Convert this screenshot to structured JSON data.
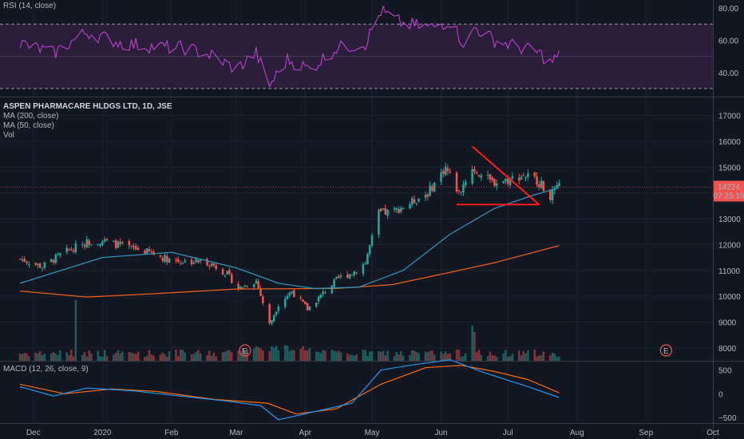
{
  "rsi": {
    "label": "RSI (14, close)",
    "ticks": [
      "80.00",
      "60.00",
      "40.00"
    ],
    "upper": 70,
    "lower": 30
  },
  "legend": {
    "title": "ASPEN PHARMACARE HLDGS LTD, 1D, JSE",
    "ma200": "MA (200, close)",
    "ma50": "MA (50, close)",
    "vol": "Vol"
  },
  "price": {
    "ticks": [
      "17000",
      "16000",
      "15000",
      "14000",
      "13000",
      "12000",
      "11000",
      "10000",
      "9000",
      "8000"
    ],
    "last_price": "14224",
    "countdown": "07:25:19"
  },
  "macd": {
    "label": "MACD (12, 26, close, 9)",
    "ticks": [
      "500",
      "0",
      "−500"
    ]
  },
  "x_labels": [
    "Dec",
    "2020",
    "Feb",
    "Mar",
    "Apr",
    "May",
    "Jun",
    "Jul",
    "Aug",
    "Sep",
    "Oct"
  ],
  "earnings_marker": "E",
  "colors": {
    "up": "#26a69a",
    "down": "#ef5350",
    "ma50": "#2e93b8",
    "ma200": "#e8601c",
    "rsi": "#b040c0",
    "rsi_band": "#2a1e3a",
    "macd": "#2196f3",
    "signal": "#ff6d00",
    "grid": "#1e222d",
    "background": "#131722",
    "pattern": "#ff1b1b"
  },
  "chart_data": {
    "type": "candlestick",
    "title": "ASPEN PHARMACARE HLDGS LTD, 1D, JSE",
    "price_range": [
      7500,
      17700
    ],
    "rsi_range": [
      25,
      85
    ],
    "macd_range": [
      -620,
      680
    ],
    "anchors": [
      [
        "2019-11-25",
        11450
      ],
      [
        "2019-12-05",
        11150
      ],
      [
        "2019-12-15",
        11700
      ],
      [
        "2019-12-25",
        12100
      ],
      [
        "2020-01-01",
        12150
      ],
      [
        "2020-01-12",
        11900
      ],
      [
        "2020-01-20",
        11750
      ],
      [
        "2020-01-28",
        11500
      ],
      [
        "2020-02-05",
        11350
      ],
      [
        "2020-02-12",
        11350
      ],
      [
        "2020-02-18",
        11300
      ],
      [
        "2020-02-26",
        10850
      ],
      [
        "2020-03-02",
        10300
      ],
      [
        "2020-03-10",
        10600
      ],
      [
        "2020-03-16",
        8900
      ],
      [
        "2020-03-20",
        9700
      ],
      [
        "2020-03-26",
        10200
      ],
      [
        "2020-04-02",
        9500
      ],
      [
        "2020-04-10",
        10200
      ],
      [
        "2020-04-16",
        10700
      ],
      [
        "2020-04-22",
        10900
      ],
      [
        "2020-04-28",
        11300
      ],
      [
        "2020-05-04",
        13200
      ],
      [
        "2020-05-11",
        13300
      ],
      [
        "2020-05-18",
        13600
      ],
      [
        "2020-05-26",
        14000
      ],
      [
        "2020-06-03",
        15000
      ],
      [
        "2020-06-09",
        14000
      ],
      [
        "2020-06-15",
        15000
      ],
      [
        "2020-06-19",
        14700
      ],
      [
        "2020-06-24",
        14400
      ],
      [
        "2020-07-01",
        14500
      ],
      [
        "2020-07-08",
        14700
      ],
      [
        "2020-07-14",
        14500
      ],
      [
        "2020-07-20",
        13900
      ],
      [
        "2020-07-24",
        14224
      ]
    ],
    "ma50": [
      [
        "2019-11-25",
        10500
      ],
      [
        "2020-01-01",
        11500
      ],
      [
        "2020-02-01",
        11700
      ],
      [
        "2020-03-01",
        11100
      ],
      [
        "2020-03-20",
        10500
      ],
      [
        "2020-04-05",
        10300
      ],
      [
        "2020-04-25",
        10350
      ],
      [
        "2020-05-15",
        11000
      ],
      [
        "2020-06-05",
        12400
      ],
      [
        "2020-06-25",
        13400
      ],
      [
        "2020-07-12",
        13900
      ],
      [
        "2020-07-24",
        14200
      ]
    ],
    "ma200": [
      [
        "2019-11-25",
        10200
      ],
      [
        "2019-12-25",
        9970
      ],
      [
        "2020-01-25",
        10100
      ],
      [
        "2020-03-01",
        10280
      ],
      [
        "2020-04-15",
        10300
      ],
      [
        "2020-05-10",
        10450
      ],
      [
        "2020-06-01",
        10850
      ],
      [
        "2020-06-25",
        11300
      ],
      [
        "2020-07-24",
        11960
      ]
    ],
    "volume_spikes": [
      [
        "2019-12-20",
        0.95
      ],
      [
        "2020-06-15",
        0.55
      ],
      [
        "2020-06-16",
        0.45
      ]
    ],
    "triangle_pattern": {
      "upper": [
        [
          "2020-06-15",
          15800
        ],
        [
          "2020-07-15",
          13550
        ]
      ],
      "lower": [
        [
          "2020-06-08",
          13550
        ],
        [
          "2020-07-15",
          13550
        ]
      ]
    },
    "earnings_dates": [
      "2020-03-05",
      "2020-09-10"
    ],
    "rsi_anchors": [
      [
        "2019-11-25",
        58
      ],
      [
        "2019-12-10",
        52
      ],
      [
        "2019-12-25",
        65
      ],
      [
        "2020-01-10",
        58
      ],
      [
        "2020-01-25",
        56
      ],
      [
        "2020-02-08",
        55
      ],
      [
        "2020-02-20",
        50
      ],
      [
        "2020-03-01",
        42
      ],
      [
        "2020-03-10",
        52
      ],
      [
        "2020-03-16",
        32
      ],
      [
        "2020-03-24",
        48
      ],
      [
        "2020-04-03",
        42
      ],
      [
        "2020-04-15",
        55
      ],
      [
        "2020-04-28",
        58
      ],
      [
        "2020-05-05",
        78
      ],
      [
        "2020-05-15",
        70
      ],
      [
        "2020-05-28",
        68
      ],
      [
        "2020-06-05",
        72
      ],
      [
        "2020-06-12",
        56
      ],
      [
        "2020-06-16",
        68
      ],
      [
        "2020-06-25",
        60
      ],
      [
        "2020-07-05",
        56
      ],
      [
        "2020-07-15",
        52
      ],
      [
        "2020-07-20",
        46
      ],
      [
        "2020-07-24",
        50
      ]
    ],
    "macd_anchors": [
      [
        "2019-11-25",
        150
      ],
      [
        "2019-12-10",
        -50
      ],
      [
        "2019-12-25",
        120
      ],
      [
        "2020-01-15",
        60
      ],
      [
        "2020-02-05",
        -50
      ],
      [
        "2020-02-25",
        -150
      ],
      [
        "2020-03-12",
        -250
      ],
      [
        "2020-03-20",
        -550
      ],
      [
        "2020-04-08",
        -350
      ],
      [
        "2020-04-22",
        -200
      ],
      [
        "2020-05-05",
        500
      ],
      [
        "2020-05-18",
        600
      ],
      [
        "2020-06-05",
        720
      ],
      [
        "2020-06-20",
        450
      ],
      [
        "2020-07-10",
        150
      ],
      [
        "2020-07-24",
        -80
      ]
    ],
    "signal_anchors": [
      [
        "2019-11-25",
        200
      ],
      [
        "2019-12-15",
        0
      ],
      [
        "2020-01-05",
        100
      ],
      [
        "2020-01-25",
        50
      ],
      [
        "2020-02-20",
        -120
      ],
      [
        "2020-03-15",
        -200
      ],
      [
        "2020-03-28",
        -430
      ],
      [
        "2020-04-15",
        -320
      ],
      [
        "2020-05-05",
        200
      ],
      [
        "2020-05-25",
        550
      ],
      [
        "2020-06-10",
        600
      ],
      [
        "2020-06-25",
        470
      ],
      [
        "2020-07-10",
        300
      ],
      [
        "2020-07-24",
        20
      ]
    ]
  }
}
